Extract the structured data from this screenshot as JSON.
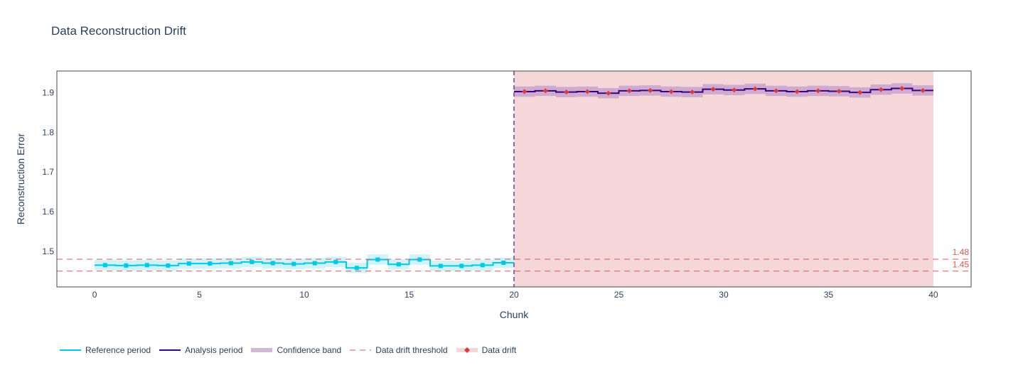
{
  "title": "Data Reconstruction Drift",
  "colors": {
    "reference": "#00c8e5",
    "reference_band": "#bdeff6",
    "analysis": "#3b0280",
    "analysis_band": "#c8a5cc",
    "drift_region": "#f6d7d9",
    "threshold": "#e05557",
    "drift_marker": "#dc3b3b",
    "divider": "#8a6bb0"
  },
  "chart_data": {
    "type": "line",
    "title": "Data Reconstruction Drift",
    "xlabel": "Chunk",
    "ylabel": "Reconstruction Error",
    "xlim": [
      -1.8,
      41.8
    ],
    "ylim": [
      1.41,
      1.955
    ],
    "xticks": [
      0,
      5,
      10,
      15,
      20,
      25,
      30,
      35,
      40
    ],
    "yticks": [
      1.5,
      1.6,
      1.7,
      1.8,
      1.9
    ],
    "threshold_upper": 1.48,
    "threshold_lower": 1.45,
    "threshold_labels": [
      "1.48",
      "1.45"
    ],
    "alert_region": {
      "x_start": 20,
      "x_end": 40
    },
    "series": [
      {
        "name": "Reference period",
        "chunk_start": 0,
        "values": [
          1.465,
          1.464,
          1.465,
          1.464,
          1.469,
          1.469,
          1.47,
          1.473,
          1.47,
          1.468,
          1.47,
          1.473,
          1.458,
          1.479,
          1.467,
          1.479,
          1.463,
          1.463,
          1.465,
          1.471
        ],
        "band_lower": [
          1.452,
          1.451,
          1.452,
          1.451,
          1.456,
          1.456,
          1.457,
          1.46,
          1.457,
          1.455,
          1.457,
          1.46,
          1.445,
          1.466,
          1.454,
          1.466,
          1.45,
          1.45,
          1.452,
          1.458
        ],
        "band_upper": [
          1.478,
          1.477,
          1.478,
          1.477,
          1.482,
          1.482,
          1.483,
          1.486,
          1.483,
          1.481,
          1.483,
          1.486,
          1.471,
          1.492,
          1.48,
          1.492,
          1.476,
          1.476,
          1.478,
          1.484
        ]
      },
      {
        "name": "Analysis period",
        "chunk_start": 20,
        "values": [
          1.903,
          1.905,
          1.902,
          1.903,
          1.899,
          1.905,
          1.906,
          1.903,
          1.902,
          1.909,
          1.907,
          1.91,
          1.905,
          1.903,
          1.905,
          1.904,
          1.901,
          1.908,
          1.911,
          1.906
        ],
        "band_lower": [
          1.89,
          1.892,
          1.889,
          1.89,
          1.886,
          1.892,
          1.893,
          1.89,
          1.889,
          1.896,
          1.894,
          1.897,
          1.892,
          1.89,
          1.892,
          1.891,
          1.888,
          1.895,
          1.898,
          1.893
        ],
        "band_upper": [
          1.916,
          1.918,
          1.915,
          1.916,
          1.912,
          1.918,
          1.919,
          1.916,
          1.915,
          1.922,
          1.92,
          1.923,
          1.918,
          1.916,
          1.918,
          1.917,
          1.914,
          1.921,
          1.924,
          1.919
        ]
      }
    ],
    "legend": {
      "placement": "bottom",
      "items": [
        "Reference period",
        "Analysis period",
        "Confidence band",
        "Data drift threshold",
        "Data drift"
      ]
    }
  }
}
